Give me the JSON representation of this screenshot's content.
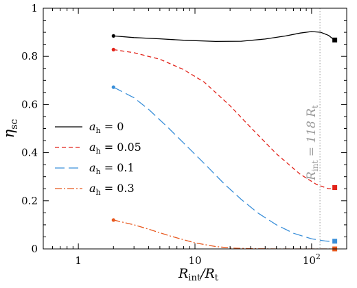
{
  "chart_data": {
    "type": "line",
    "x_scale": "log",
    "xlim": [
      0.5,
      200
    ],
    "ylim": [
      0,
      1
    ],
    "grid": false,
    "legend_position": "center-left",
    "xlabel": {
      "main": "R",
      "sub1": "int",
      "mid": "/R",
      "sub2": "t"
    },
    "ylabel": {
      "main": "η",
      "sub": "sc"
    },
    "x_ticks": [
      {
        "value": 1,
        "label": "1"
      },
      {
        "value": 10,
        "label": "10"
      },
      {
        "value": 100,
        "label": "10",
        "sup": "2"
      }
    ],
    "y_ticks": [
      {
        "value": 0,
        "label": "0"
      },
      {
        "value": 0.2,
        "label": "0.2"
      },
      {
        "value": 0.4,
        "label": "0.4"
      },
      {
        "value": 0.6,
        "label": "0.6"
      },
      {
        "value": 0.8,
        "label": "0.8"
      },
      {
        "value": 1,
        "label": "1"
      }
    ],
    "vline": {
      "x": 118,
      "color": "#9a9a9a",
      "label_lhs": "R",
      "label_lhs_sub": "int",
      "label_eq": " = 118 R",
      "label_rhs_sub": "t"
    },
    "series": [
      {
        "legend_var": "a",
        "legend_sub": "h",
        "legend_value": " = 0",
        "color": "#000000",
        "dash": "",
        "x": [
          2.0,
          3.0,
          5.0,
          8.0,
          15.0,
          25.0,
          40.0,
          60.0,
          80.0,
          100.0,
          120.0,
          140.0,
          155.0
        ],
        "y": [
          0.885,
          0.878,
          0.873,
          0.867,
          0.862,
          0.863,
          0.872,
          0.885,
          0.897,
          0.903,
          0.9,
          0.887,
          0.87
        ],
        "start_marker": {
          "x": 2.0,
          "y": 0.885
        },
        "end_marker": {
          "x": 158.0,
          "y": 0.868
        }
      },
      {
        "legend_var": "a",
        "legend_sub": "h",
        "legend_value": " = 0.05",
        "color": "#e2231a",
        "dash": "6,4",
        "x": [
          2.0,
          3.0,
          5.0,
          8.0,
          12.0,
          20.0,
          30.0,
          50.0,
          80.0,
          110.0,
          140.0,
          155.0
        ],
        "y": [
          0.828,
          0.815,
          0.788,
          0.745,
          0.693,
          0.595,
          0.505,
          0.395,
          0.31,
          0.268,
          0.25,
          0.25
        ],
        "start_marker": {
          "x": 2.0,
          "y": 0.828
        },
        "end_marker": {
          "x": 158.0,
          "y": 0.255
        }
      },
      {
        "legend_var": "a",
        "legend_sub": "h",
        "legend_value": " = 0.1",
        "color": "#3a8fd9",
        "dash": "14,6",
        "x": [
          2.0,
          3.0,
          4.0,
          6.0,
          8.0,
          12.0,
          18.0,
          25.0,
          35.0,
          50.0,
          70.0,
          100.0,
          130.0,
          155.0
        ],
        "y": [
          0.672,
          0.628,
          0.58,
          0.5,
          0.44,
          0.355,
          0.268,
          0.205,
          0.148,
          0.1,
          0.065,
          0.042,
          0.033,
          0.03
        ],
        "start_marker": {
          "x": 2.0,
          "y": 0.672
        },
        "end_marker": {
          "x": 158.0,
          "y": 0.032
        }
      },
      {
        "legend_var": "a",
        "legend_sub": "h",
        "legend_value": " = 0.3",
        "color": "#e8591f",
        "dash": "10,3,2,3",
        "x": [
          2.0,
          3.0,
          4.0,
          6.0,
          10.0,
          15.0,
          20.0,
          30.0,
          50.0,
          80.0,
          120.0,
          155.0
        ],
        "y": [
          0.12,
          0.1,
          0.082,
          0.055,
          0.025,
          0.01,
          0.004,
          0.001,
          0.0,
          0.0,
          0.0,
          0.0
        ],
        "start_marker": {
          "x": 2.0,
          "y": 0.12
        },
        "end_marker": {
          "x": 158.0,
          "y": 0.0
        }
      }
    ]
  }
}
